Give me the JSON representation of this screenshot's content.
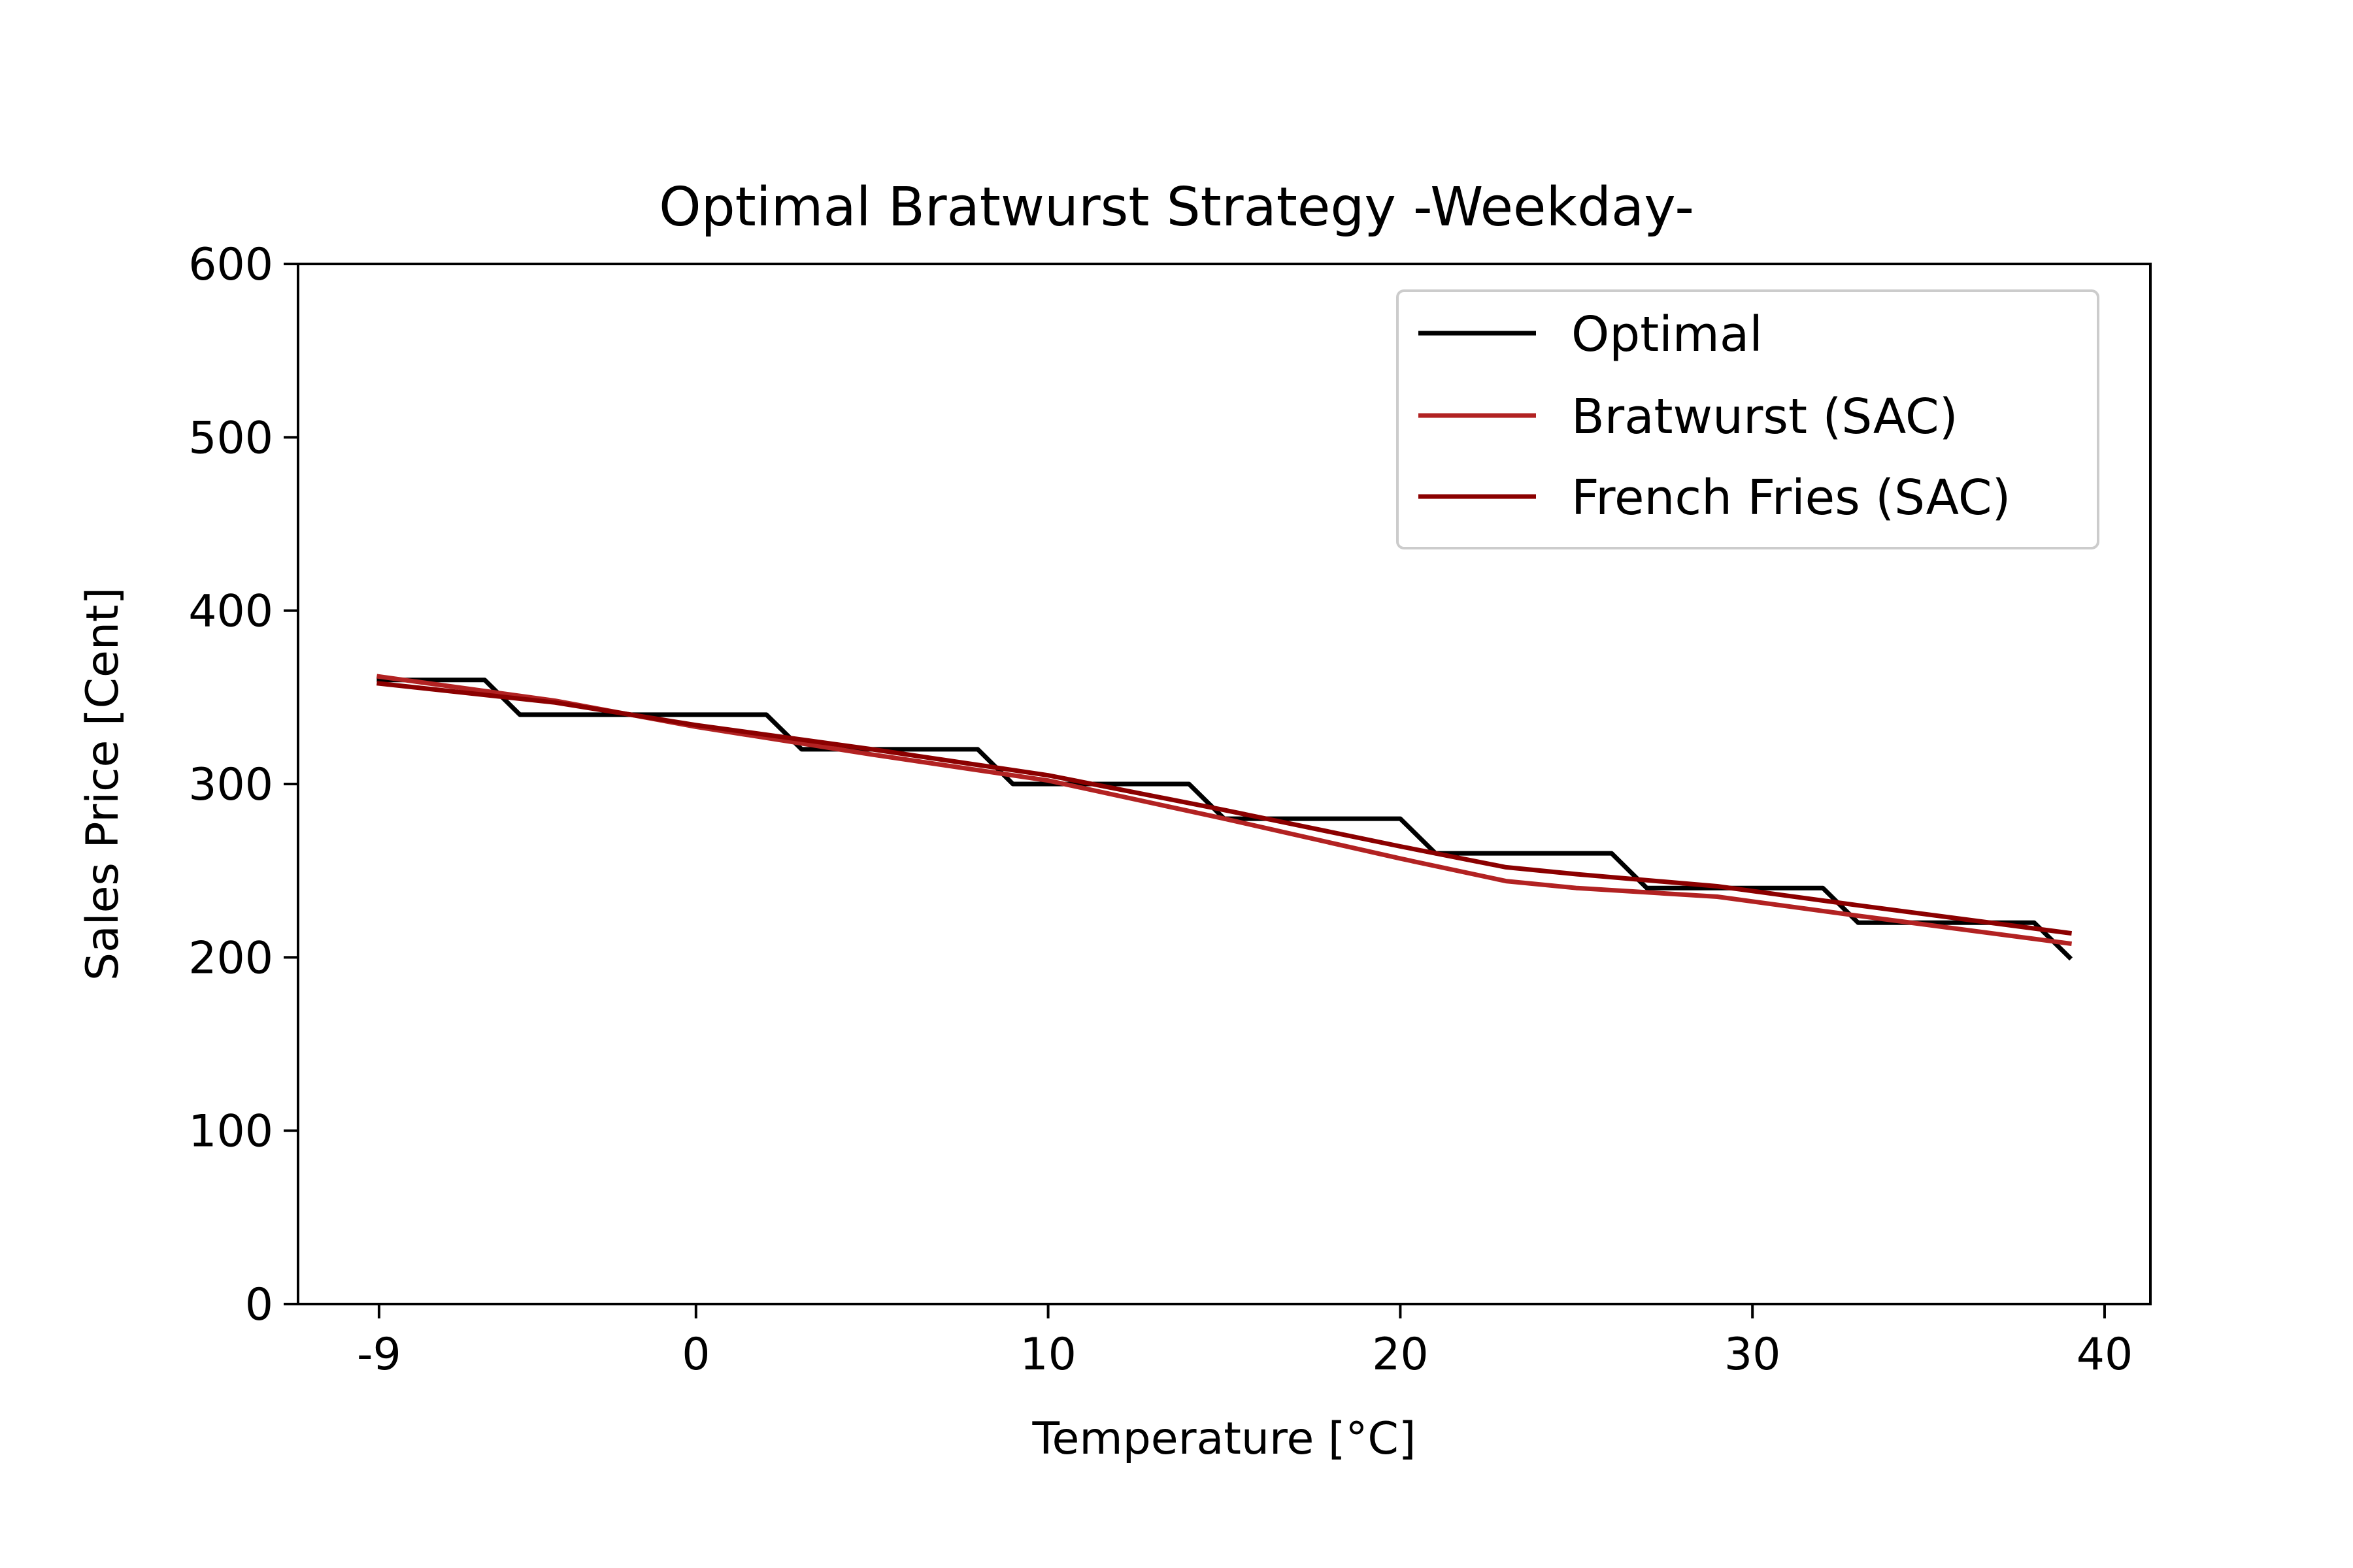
{
  "chart_data": {
    "type": "line",
    "title": "Optimal Bratwurst Strategy -Weekday-",
    "xlabel": "Temperature [°C]",
    "ylabel": "Sales Price [Cent]",
    "xlim": [
      -11.3,
      41.3
    ],
    "ylim": [
      0,
      600
    ],
    "xticks": [
      -9,
      0,
      10,
      20,
      30,
      40
    ],
    "yticks": [
      0,
      100,
      200,
      300,
      400,
      500,
      600
    ],
    "grid": false,
    "legend_position": "top-right",
    "series": [
      {
        "name": "Optimal",
        "color": "#000000",
        "x": [
          -9,
          -6,
          -5,
          -3,
          2,
          3,
          8,
          9,
          14,
          15,
          20,
          21,
          26,
          27,
          32,
          33,
          38,
          39
        ],
        "y": [
          360,
          360,
          340,
          340,
          340,
          320,
          320,
          300,
          300,
          280,
          280,
          260,
          260,
          240,
          240,
          220,
          220,
          200
        ]
      },
      {
        "name": "Bratwurst (SAC)",
        "color": "#b22222",
        "x": [
          -9,
          -4,
          0,
          5,
          10,
          15,
          20,
          23,
          25,
          29,
          33,
          39
        ],
        "y": [
          362,
          348,
          333,
          317,
          302,
          280,
          257,
          244,
          240,
          235,
          224,
          208
        ]
      },
      {
        "name": "French Fries (SAC)",
        "color": "#8b0000",
        "x": [
          -9,
          -4,
          0,
          5,
          10,
          15,
          20,
          23,
          25,
          29,
          33,
          39
        ],
        "y": [
          358,
          347,
          334,
          320,
          305,
          285,
          264,
          252,
          248,
          241,
          230,
          214
        ]
      }
    ]
  }
}
